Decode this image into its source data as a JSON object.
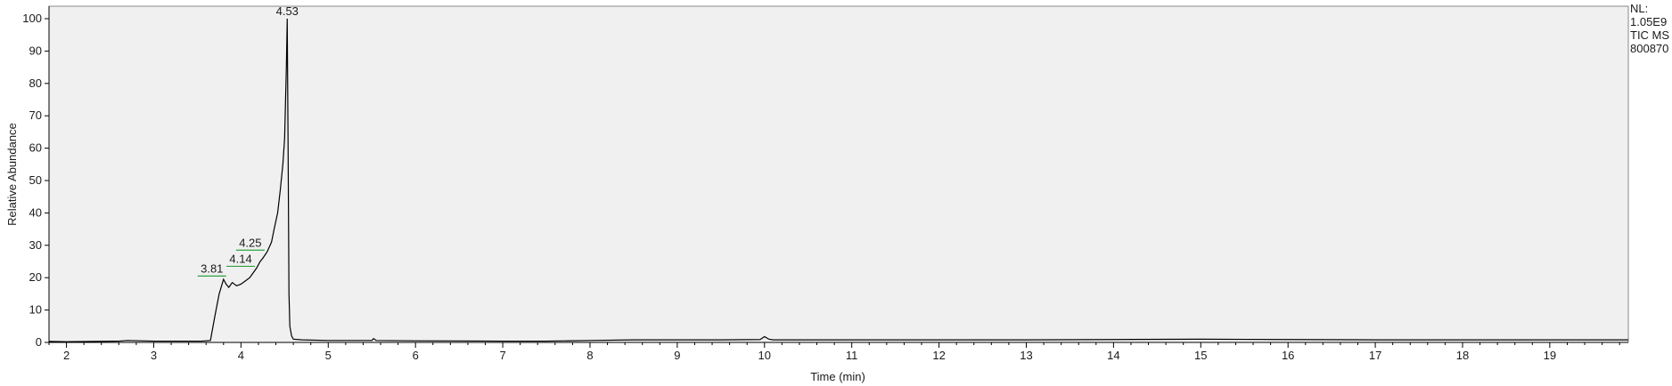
{
  "chart_data": {
    "type": "line",
    "xlabel": "Time (min)",
    "ylabel": "Relative Abundance",
    "xlim": [
      1.8,
      19.9
    ],
    "ylim": [
      0,
      100
    ],
    "x_ticks": [
      2,
      3,
      4,
      5,
      6,
      7,
      8,
      9,
      10,
      11,
      12,
      13,
      14,
      15,
      16,
      17,
      18,
      19
    ],
    "y_ticks": [
      0,
      10,
      20,
      30,
      40,
      50,
      60,
      70,
      80,
      90,
      100
    ],
    "grid": false,
    "info_block": [
      "NL:",
      "1.05E9",
      "TIC  MS",
      "800870"
    ],
    "peak_labels": [
      {
        "text": "3.81",
        "x": 3.81,
        "y": 20.5
      },
      {
        "text": "4.14",
        "x": 4.14,
        "y": 23.5
      },
      {
        "text": "4.25",
        "x": 4.25,
        "y": 28.5
      },
      {
        "text": "4.53",
        "x": 4.53,
        "y": 100
      }
    ],
    "series": [
      {
        "x": [
          1.8,
          2.0,
          2.3,
          2.6,
          2.7,
          3.0,
          3.3,
          3.55,
          3.65,
          3.7,
          3.75,
          3.8,
          3.83,
          3.86,
          3.9,
          3.95,
          4.0,
          4.05,
          4.1,
          4.14,
          4.18,
          4.22,
          4.25,
          4.3,
          4.35,
          4.38,
          4.42,
          4.45,
          4.48,
          4.5,
          4.52,
          4.53,
          4.54,
          4.55,
          4.56,
          4.58,
          4.6,
          4.7,
          5.0,
          5.5,
          5.52,
          5.55,
          6.0,
          7.0,
          7.5,
          8.0,
          8.5,
          9.0,
          9.5,
          9.95,
          10.0,
          10.05,
          10.1,
          10.5,
          11.0,
          12.0,
          13.0,
          14.0,
          15.0,
          16.0,
          17.0,
          18.0,
          19.0,
          19.9
        ],
        "y": [
          0.3,
          0.2,
          0.3,
          0.4,
          0.6,
          0.4,
          0.4,
          0.4,
          0.6,
          8,
          15,
          19.5,
          18,
          17,
          18.5,
          17.5,
          18,
          19,
          20,
          21.5,
          23,
          25,
          26,
          28,
          31,
          35,
          40,
          47,
          55,
          63,
          85,
          100,
          60,
          15,
          5,
          2,
          1,
          0.8,
          0.6,
          0.6,
          1.2,
          0.6,
          0.5,
          0.4,
          0.4,
          0.6,
          0.8,
          0.8,
          0.8,
          0.9,
          1.8,
          1.0,
          0.8,
          0.8,
          0.8,
          0.8,
          0.8,
          0.9,
          1.0,
          0.9,
          0.8,
          0.8,
          0.8,
          0.8
        ]
      }
    ]
  }
}
